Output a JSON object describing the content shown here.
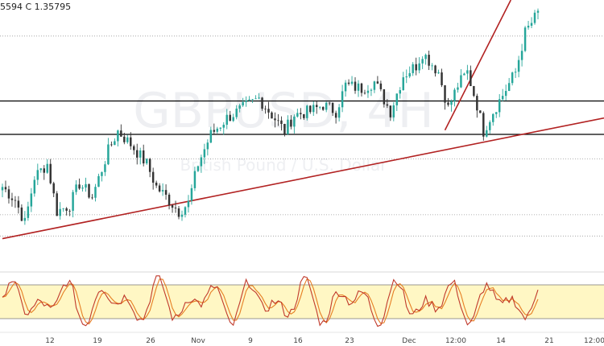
{
  "header": {
    "ohlc_text": "5594  C 1.35795"
  },
  "watermark": {
    "symbol": "GBPUSD, 4H",
    "subtitle": "British Pound / U.S. Dollar"
  },
  "colors": {
    "up": "#26a69a",
    "down": "#333333",
    "trendline": "#b22222",
    "level": "#000000",
    "dotted": "#9a9a9a",
    "stoch_band": "#fff7c4",
    "stoch_k": "#c0392b",
    "stoch_d": "#e67e22"
  },
  "chart_data": {
    "type": "candlestick",
    "x_labels": [
      "12",
      "19",
      "26",
      "Nov",
      "9",
      "16",
      "23",
      "Dec",
      "12:00",
      "14",
      "21",
      "12:00"
    ],
    "ylim": [
      1.283,
      1.364
    ],
    "levels": {
      "solid": [
        1.3332,
        1.323
      ],
      "dotted": [
        1.353,
        1.3155,
        1.2985,
        1.292
      ]
    },
    "trendlines": [
      {
        "from": {
          "bar": 0,
          "price": 1.2912
        },
        "to": {
          "bar": 159,
          "price": 1.3224
        }
      },
      {
        "from": {
          "bar": 138,
          "price": 1.3243
        },
        "to": {
          "bar": 159,
          "price": 1.3649
        }
      }
    ],
    "stochastic": {
      "upper": 80,
      "lower": 20
    }
  }
}
